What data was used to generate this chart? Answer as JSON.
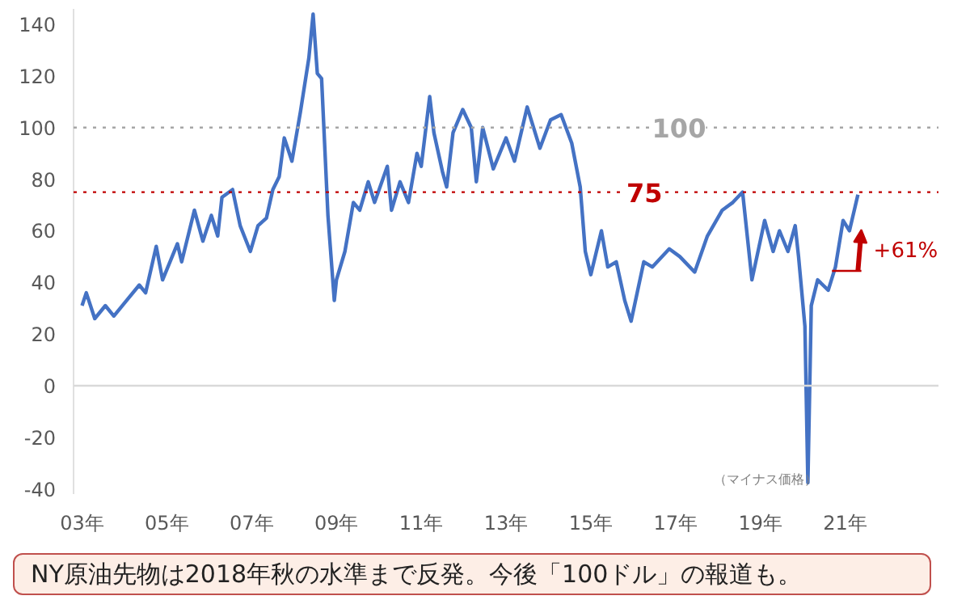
{
  "chart_data": {
    "type": "line",
    "xlim": [
      2.8,
      23.2
    ],
    "ylim": [
      -42,
      146
    ],
    "xticks": [
      {
        "value": 3,
        "label": "03年"
      },
      {
        "value": 5,
        "label": "05年"
      },
      {
        "value": 7,
        "label": "07年"
      },
      {
        "value": 9,
        "label": "09年"
      },
      {
        "value": 11,
        "label": "11年"
      },
      {
        "value": 13,
        "label": "13年"
      },
      {
        "value": 15,
        "label": "15年"
      },
      {
        "value": 17,
        "label": "17年"
      },
      {
        "value": 19,
        "label": "19年"
      },
      {
        "value": 21,
        "label": "21年"
      }
    ],
    "yticks": [
      -40,
      -20,
      0,
      20,
      40,
      60,
      80,
      100,
      120,
      140
    ],
    "grid": false,
    "marker": "none",
    "line_style": "solid",
    "series": [
      {
        "color": "#4472c4",
        "x": [
          3.0,
          3.1,
          3.3,
          3.55,
          3.75,
          4.05,
          4.35,
          4.5,
          4.75,
          4.9,
          5.25,
          5.35,
          5.65,
          5.85,
          6.05,
          6.2,
          6.3,
          6.55,
          6.73,
          6.97,
          7.15,
          7.35,
          7.5,
          7.65,
          7.77,
          7.95,
          8.15,
          8.35,
          8.45,
          8.55,
          8.65,
          8.8,
          8.95,
          9.0,
          9.2,
          9.4,
          9.55,
          9.75,
          9.9,
          10.2,
          10.3,
          10.5,
          10.7,
          10.9,
          11.0,
          11.2,
          11.3,
          11.5,
          11.6,
          11.75,
          11.98,
          12.18,
          12.3,
          12.45,
          12.7,
          13.0,
          13.2,
          13.5,
          13.8,
          14.05,
          14.3,
          14.55,
          14.75,
          14.87,
          15.0,
          15.25,
          15.4,
          15.6,
          15.8,
          15.95,
          16.25,
          16.45,
          16.85,
          17.1,
          17.45,
          17.75,
          18.1,
          18.35,
          18.58,
          18.8,
          19.1,
          19.3,
          19.45,
          19.65,
          19.82,
          19.9,
          20.05,
          20.12,
          20.2,
          20.35,
          20.6,
          20.77,
          20.95,
          21.1,
          21.3
        ],
        "values": [
          31,
          36,
          26,
          31,
          27,
          33,
          39,
          36,
          54,
          41,
          55,
          48,
          68,
          56,
          66,
          58,
          73,
          76,
          62,
          52,
          62,
          65,
          76,
          81,
          96,
          87,
          106,
          127,
          144,
          121,
          119,
          66,
          33,
          41,
          52,
          71,
          68,
          79,
          71,
          85,
          68,
          79,
          71,
          90,
          85,
          112,
          98,
          83,
          77,
          98,
          107,
          100,
          79,
          100,
          84,
          96,
          87,
          108,
          92,
          103,
          105,
          94,
          77,
          52,
          43,
          60,
          46,
          48,
          33,
          25,
          48,
          46,
          53,
          50,
          44,
          58,
          68,
          71,
          75,
          41,
          64,
          52,
          60,
          52,
          62,
          50,
          23,
          -37.6,
          31,
          41,
          37,
          46,
          64,
          60,
          74
        ]
      }
    ],
    "ref_lines": [
      {
        "axis": "y",
        "value": 0,
        "color": "#d9d9d9",
        "line_style": "solid"
      },
      {
        "axis": "y",
        "value": 100,
        "label": "100",
        "color": "#a6a6a6",
        "line_style": "dotted"
      },
      {
        "axis": "y",
        "value": 75,
        "label": "75",
        "color": "#c00000",
        "line_style": "dotted"
      }
    ],
    "annotations": [
      "+61%",
      "（マイナス価格）",
      "NY原油先物は2018年秋の水準まで反発。今後「100ドル」の報道も。"
    ]
  }
}
